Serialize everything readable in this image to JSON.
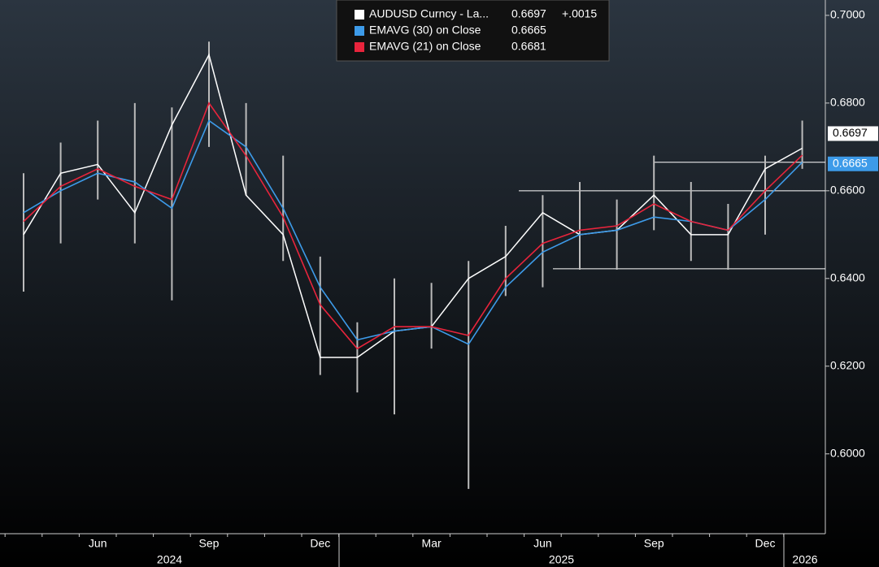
{
  "chart_data": {
    "type": "line",
    "categories": [
      null,
      null,
      "Jun",
      null,
      null,
      "Sep",
      null,
      null,
      "Dec",
      null,
      null,
      "Mar",
      null,
      null,
      "Jun",
      null,
      null,
      "Sep",
      null,
      null,
      "Dec",
      null
    ],
    "x_groups": [
      "2024",
      "2025",
      "2026"
    ],
    "series": [
      {
        "name": "AUDUSD Curncy - La...",
        "color": "#ffffff",
        "change": "+.0015",
        "values": [
          0.65,
          0.664,
          0.666,
          0.655,
          0.675,
          0.691,
          0.659,
          0.65,
          0.622,
          0.622,
          0.628,
          0.629,
          0.64,
          0.645,
          0.655,
          0.65,
          0.651,
          0.659,
          0.65,
          0.65,
          0.665,
          0.6697
        ],
        "high": [
          0.664,
          0.671,
          0.676,
          0.68,
          0.679,
          0.694,
          0.68,
          0.668,
          0.645,
          0.63,
          0.64,
          0.639,
          0.644,
          0.652,
          0.659,
          0.662,
          0.658,
          0.668,
          0.662,
          0.657,
          0.668,
          0.676
        ],
        "low": [
          0.637,
          0.648,
          0.658,
          0.648,
          0.635,
          0.67,
          0.659,
          0.644,
          0.618,
          0.614,
          0.609,
          0.624,
          0.592,
          0.636,
          0.638,
          0.642,
          0.642,
          0.651,
          0.644,
          0.642,
          0.65,
          0.665
        ]
      },
      {
        "name": "EMAVG (30)  on Close",
        "color": "#3d9be9",
        "values": [
          0.655,
          0.66,
          0.664,
          0.662,
          0.656,
          0.676,
          0.67,
          0.656,
          0.638,
          0.626,
          0.628,
          0.629,
          0.625,
          0.638,
          0.646,
          0.65,
          0.651,
          0.654,
          0.653,
          0.651,
          0.658,
          0.6665
        ]
      },
      {
        "name": "EMAVG (21)  on Close",
        "color": "#e8243c",
        "values": [
          0.653,
          0.661,
          0.665,
          0.661,
          0.658,
          0.68,
          0.668,
          0.654,
          0.634,
          0.624,
          0.629,
          0.629,
          0.627,
          0.64,
          0.648,
          0.651,
          0.652,
          0.657,
          0.653,
          0.651,
          0.66,
          0.6681
        ]
      }
    ],
    "reference_lines": [
      0.6665,
      0.66,
      0.6422
    ],
    "ylim": [
      0.5818,
      0.7035
    ],
    "yticks": [
      {
        "value": 0.6,
        "label": "0.6000"
      },
      {
        "value": 0.62,
        "label": "0.6200"
      },
      {
        "value": 0.64,
        "label": "0.6400"
      },
      {
        "value": 0.66,
        "label": "0.6600"
      },
      {
        "value": 0.68,
        "label": "0.6800"
      },
      {
        "value": 0.7,
        "label": "0.7000"
      }
    ]
  }
}
